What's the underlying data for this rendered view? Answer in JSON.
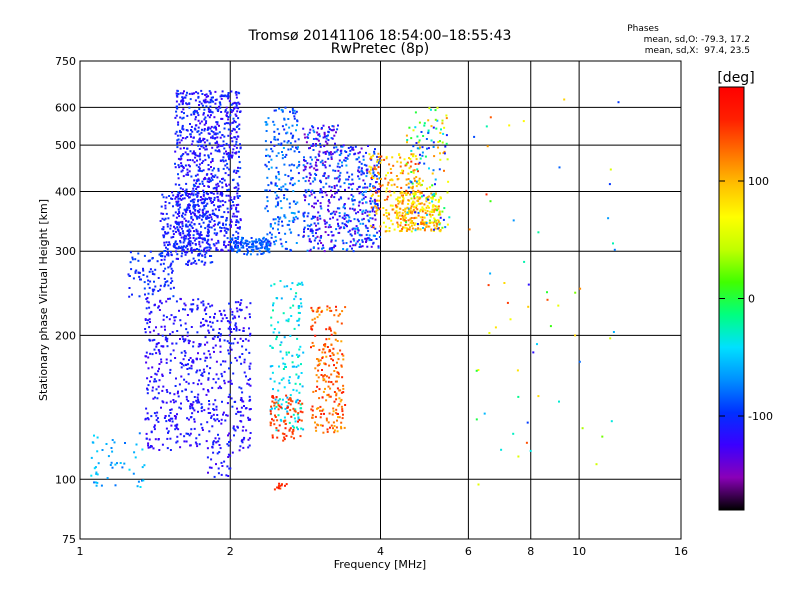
{
  "header": {
    "title": "Tromsø 20141106 18:54:00–18:55:43",
    "subtitle": "RwPretec (8p)"
  },
  "stats": {
    "heading": "Phases",
    "line1": "mean, sd,O: -79.3, 17.2",
    "line2": "mean, sd,X:  97.4, 23.5"
  },
  "colorbar": {
    "label": "[deg]",
    "ticks": [
      100,
      0,
      -100
    ],
    "range": [
      -180,
      180
    ],
    "colors": [
      "#000000",
      "#8a00b8",
      "#3a00ff",
      "#0030ff",
      "#0090ff",
      "#00e0ff",
      "#00ff80",
      "#40ff00",
      "#c0ff00",
      "#ffff00",
      "#ffc000",
      "#ff7000",
      "#ff2000",
      "#ff0000"
    ]
  },
  "chart_data": {
    "type": "scatter",
    "xlabel": "Frequency [MHz]",
    "ylabel": "Stationary phase Virtual Height [km]",
    "xscale": "log",
    "yscale": "log",
    "xlim": [
      1,
      16
    ],
    "ylim": [
      75,
      750
    ],
    "xticks": [
      1,
      2,
      4,
      6,
      8,
      10,
      16
    ],
    "yticks": [
      75,
      100,
      200,
      300,
      400,
      500,
      600,
      750
    ],
    "grid": true,
    "clusters": [
      {
        "f": [
          1.55,
          2.1
        ],
        "h": [
          300,
          650
        ],
        "phase": [
          -130,
          -90
        ],
        "n": 900
      },
      {
        "f": [
          1.45,
          1.85
        ],
        "h": [
          280,
          400
        ],
        "phase": [
          -120,
          -90
        ],
        "n": 250
      },
      {
        "f": [
          1.25,
          1.55
        ],
        "h": [
          240,
          300
        ],
        "phase": [
          -110,
          -90
        ],
        "n": 90
      },
      {
        "f": [
          2.0,
          2.4
        ],
        "h": [
          295,
          320
        ],
        "phase": [
          -100,
          -70
        ],
        "n": 120
      },
      {
        "f": [
          2.35,
          2.75
        ],
        "h": [
          300,
          600
        ],
        "phase": [
          -110,
          -60
        ],
        "n": 220
      },
      {
        "f": [
          2.8,
          3.3
        ],
        "h": [
          300,
          550
        ],
        "phase": [
          -150,
          -70
        ],
        "n": 300
      },
      {
        "f": [
          3.3,
          4.0
        ],
        "h": [
          300,
          500
        ],
        "phase": [
          -140,
          -60
        ],
        "n": 300
      },
      {
        "f": [
          3.8,
          4.8
        ],
        "h": [
          330,
          480
        ],
        "phase": [
          60,
          150
        ],
        "n": 200
      },
      {
        "f": [
          4.3,
          5.3
        ],
        "h": [
          330,
          400
        ],
        "phase": [
          60,
          130
        ],
        "n": 200
      },
      {
        "f": [
          4.5,
          5.5
        ],
        "h": [
          330,
          600
        ],
        "phase": [
          -120,
          130
        ],
        "n": 160
      },
      {
        "f": [
          1.35,
          2.2
        ],
        "h": [
          115,
          240
        ],
        "phase": [
          -130,
          -100
        ],
        "n": 650
      },
      {
        "f": [
          1.05,
          1.35
        ],
        "h": [
          95,
          125
        ],
        "phase": [
          -80,
          -40
        ],
        "n": 50
      },
      {
        "f": [
          2.4,
          2.8
        ],
        "h": [
          125,
          260
        ],
        "phase": [
          -60,
          -20
        ],
        "n": 150
      },
      {
        "f": [
          2.4,
          2.8
        ],
        "h": [
          120,
          150
        ],
        "phase": [
          130,
          160
        ],
        "n": 80
      },
      {
        "f": [
          2.9,
          3.4
        ],
        "h": [
          125,
          230
        ],
        "phase": [
          100,
          160
        ],
        "n": 220
      },
      {
        "f": [
          1.8,
          2.05
        ],
        "h": [
          100,
          115
        ],
        "phase": [
          -130,
          -100
        ],
        "n": 25
      },
      {
        "f": [
          2.45,
          2.6
        ],
        "h": [
          95,
          98
        ],
        "phase": [
          140,
          160
        ],
        "n": 12
      },
      {
        "f": [
          6.0,
          12.0
        ],
        "h": [
          90,
          650
        ],
        "phase": [
          -130,
          150
        ],
        "n": 60
      }
    ]
  }
}
